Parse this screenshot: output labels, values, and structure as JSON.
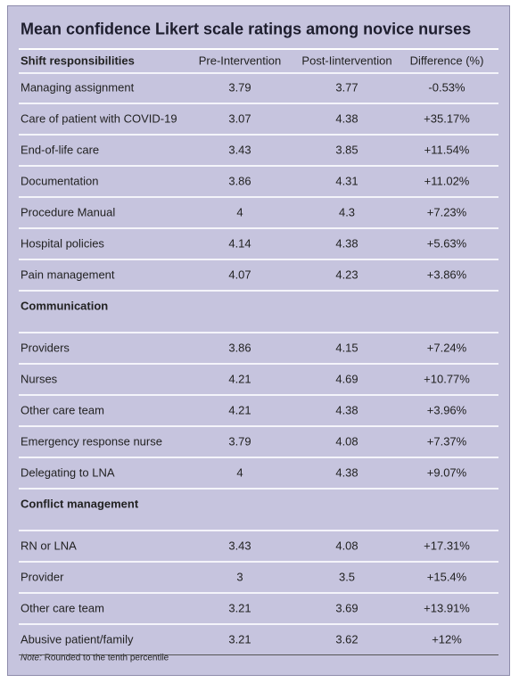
{
  "title": "Mean confidence Likert scale ratings among novice nurses",
  "columns": [
    "Pre-Intervention",
    "Post-Iintervention",
    "Difference (%)"
  ],
  "sections": [
    {
      "title": "Shift responsibilities",
      "rows": [
        [
          "Managing assignment",
          "3.79",
          "3.77",
          "-0.53%"
        ],
        [
          "Care of patient with COVID-19",
          "3.07",
          "4.38",
          "+35.17%"
        ],
        [
          "End-of-life care",
          "3.43",
          "3.85",
          "+11.54%"
        ],
        [
          "Documentation",
          "3.86",
          "4.31",
          "+11.02%"
        ],
        [
          "Procedure Manual",
          "4",
          "4.3",
          "+7.23%"
        ],
        [
          "Hospital policies",
          "4.14",
          "4.38",
          "+5.63%"
        ],
        [
          "Pain management",
          "4.07",
          "4.23",
          "+3.86%"
        ]
      ]
    },
    {
      "title": "Communication",
      "rows": [
        [
          "Providers",
          "3.86",
          "4.15",
          "+7.24%"
        ],
        [
          "Nurses",
          "4.21",
          "4.69",
          "+10.77%"
        ],
        [
          "Other care team",
          "4.21",
          "4.38",
          "+3.96%"
        ],
        [
          "Emergency response nurse",
          "3.79",
          "4.08",
          "+7.37%"
        ],
        [
          "Delegating to LNA",
          "4",
          "4.38",
          "+9.07%"
        ]
      ]
    },
    {
      "title": "Conflict management",
      "rows": [
        [
          "RN or LNA",
          "3.43",
          "4.08",
          "+17.31%"
        ],
        [
          "Provider",
          "3",
          "3.5",
          "+15.4%"
        ],
        [
          "Other care team",
          "3.21",
          "3.69",
          "+13.91%"
        ],
        [
          "Abusive patient/family",
          "3.21",
          "3.62",
          "+12%"
        ]
      ]
    }
  ],
  "note": {
    "label": "Note:",
    "text": "Rounded to the tenth percentile"
  }
}
